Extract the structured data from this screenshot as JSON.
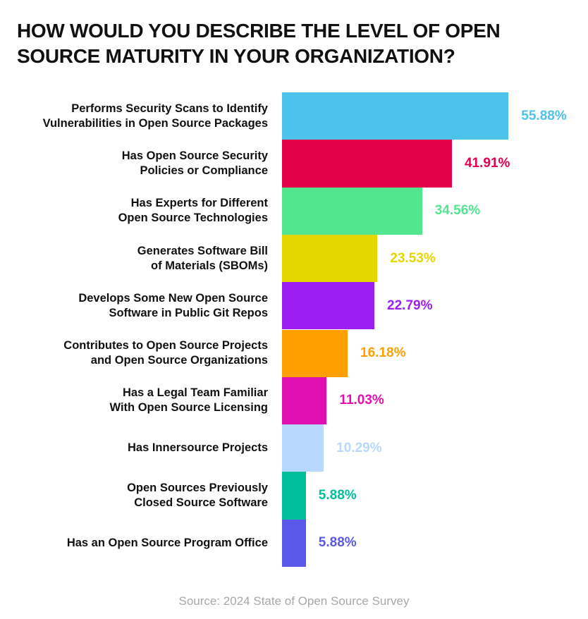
{
  "chart_data": {
    "type": "barh",
    "title": "HOW WOULD YOU DESCRIBE THE LEVEL OF OPEN\nSOURCE MATURITY IN YOUR ORGANIZATION?",
    "categories": [
      "Performs Security Scans to Identify\nVulnerabilities in Open Source Packages",
      "Has Open Source Security\nPolicies or Compliance",
      "Has Experts for Different\nOpen Source Technologies",
      "Generates Software Bill\nof Materials (SBOMs)",
      "Develops Some New Open Source\nSoftware in Public Git Repos",
      "Contributes to Open Source Projects\nand Open Source Organizations",
      "Has a Legal Team Familiar\nWith Open Source Licensing",
      "Has Innersource Projects",
      "Open Sources Previously\nClosed Source Software",
      "Has an Open Source Program Office"
    ],
    "values": [
      55.88,
      41.91,
      34.56,
      23.53,
      22.79,
      16.18,
      11.03,
      10.29,
      5.88,
      5.88
    ],
    "value_labels": [
      "55.88%",
      "41.91%",
      "34.56%",
      "23.53%",
      "22.79%",
      "16.18%",
      "11.03%",
      "10.29%",
      "5.88%",
      "5.88%"
    ],
    "colors": [
      "#4dc3ec",
      "#e4004b",
      "#52e68e",
      "#e6d600",
      "#9b1ff0",
      "#ffa000",
      "#e010b0",
      "#b8d8ff",
      "#00bf9a",
      "#5a58e8"
    ],
    "xlim": [
      0,
      56
    ],
    "source": "Source: 2024 State of Open Source Survey"
  }
}
